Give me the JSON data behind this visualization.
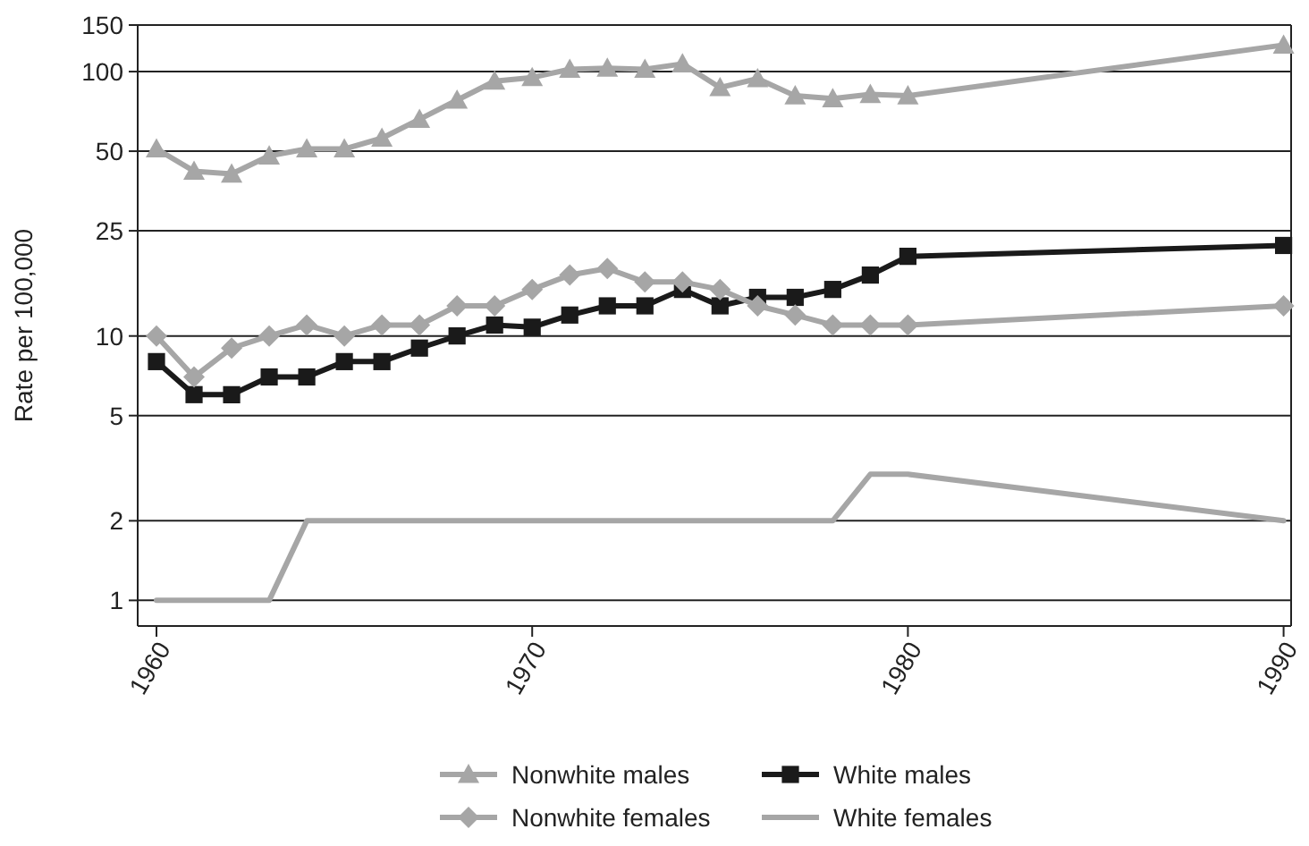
{
  "chart_data": {
    "type": "line",
    "ylabel": "Rate per 100,000",
    "log": "y",
    "grid": "y",
    "legend": "bottom",
    "xlim": [
      1959.5,
      1990.2
    ],
    "xticks": [
      1960,
      1970,
      1980,
      1990
    ],
    "ylim": [
      0.8,
      150
    ],
    "yticks": [
      1,
      2,
      5,
      10,
      25,
      50,
      100,
      150
    ],
    "series": [
      {
        "name": "Nonwhite males",
        "color": "#a6a6a6",
        "marker": "triangle",
        "x": [
          1960,
          1961,
          1962,
          1963,
          1964,
          1965,
          1966,
          1967,
          1968,
          1969,
          1970,
          1971,
          1972,
          1973,
          1974,
          1975,
          1976,
          1977,
          1978,
          1979,
          1980,
          1990
        ],
        "values": [
          51,
          42,
          41,
          48,
          51,
          51,
          56,
          66,
          78,
          92,
          95,
          102,
          103,
          102,
          107,
          87,
          94,
          81,
          79,
          82,
          81,
          126
        ]
      },
      {
        "name": "White males",
        "color": "#1a1a1a",
        "marker": "square",
        "x": [
          1960,
          1961,
          1962,
          1963,
          1964,
          1965,
          1966,
          1967,
          1968,
          1969,
          1970,
          1971,
          1972,
          1973,
          1974,
          1975,
          1976,
          1977,
          1978,
          1979,
          1980,
          1990
        ],
        "values": [
          8,
          6,
          6,
          7,
          7,
          8,
          8,
          9,
          10,
          11,
          10.8,
          12,
          13,
          13,
          15,
          13,
          14,
          14,
          15,
          17,
          20,
          22
        ]
      },
      {
        "name": "Nonwhite females",
        "color": "#a6a6a6",
        "marker": "diamond",
        "x": [
          1960,
          1961,
          1962,
          1963,
          1964,
          1965,
          1966,
          1967,
          1968,
          1969,
          1970,
          1971,
          1972,
          1973,
          1974,
          1975,
          1976,
          1977,
          1978,
          1979,
          1980,
          1990
        ],
        "values": [
          10,
          7,
          9,
          10,
          11,
          10,
          11,
          11,
          13,
          13,
          15,
          17,
          18,
          16,
          16,
          15,
          13,
          12,
          11,
          11,
          11,
          13
        ]
      },
      {
        "name": "White females",
        "color": "#a6a6a6",
        "marker": "none",
        "x": [
          1960,
          1961,
          1962,
          1963,
          1964,
          1965,
          1966,
          1967,
          1968,
          1969,
          1970,
          1971,
          1972,
          1973,
          1974,
          1975,
          1976,
          1977,
          1978,
          1979,
          1980,
          1990
        ],
        "values": [
          1,
          1,
          1,
          1,
          2,
          2,
          2,
          2,
          2,
          2,
          2,
          2,
          2,
          2,
          2,
          2,
          2,
          2,
          2,
          3,
          3,
          2
        ]
      }
    ]
  }
}
